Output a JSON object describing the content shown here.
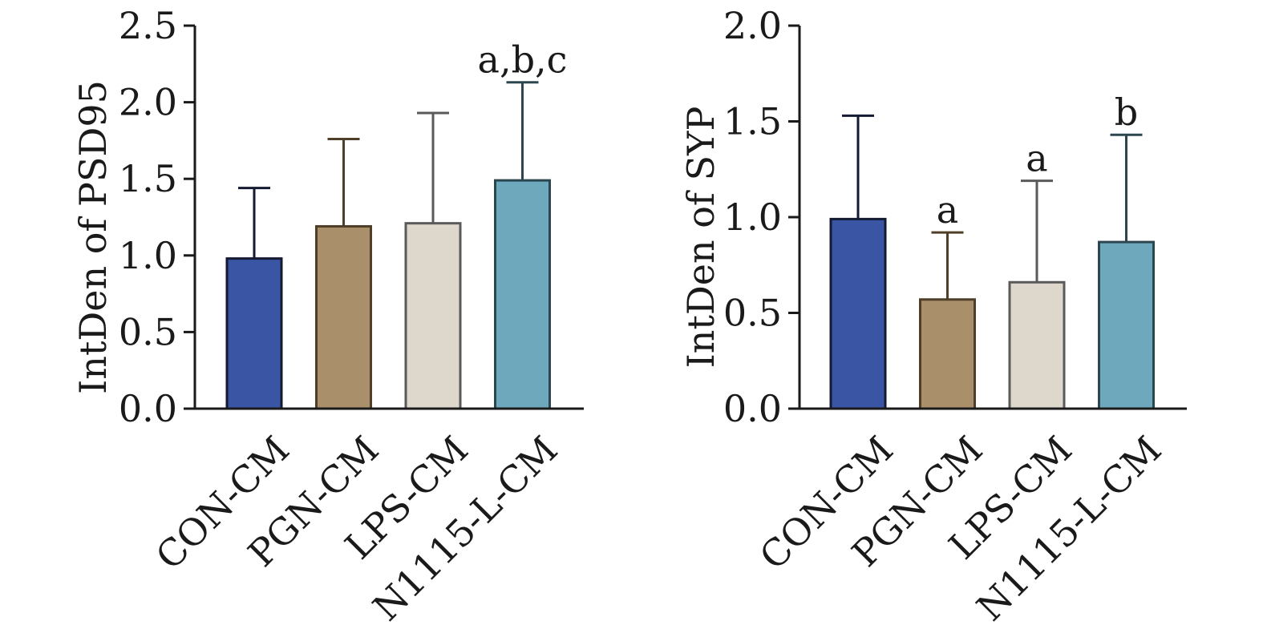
{
  "chart_data": [
    {
      "type": "bar",
      "ylabel": "IntDen of  PSD95",
      "ylim": [
        0,
        2.5
      ],
      "yticks": [
        "0.0",
        "0.5",
        "1.0",
        "1.5",
        "2.0",
        "2.5"
      ],
      "categories": [
        "CON-CM",
        "PGN-CM",
        "LPS-CM",
        "N1115-L-CM"
      ],
      "values": [
        0.98,
        1.19,
        1.21,
        1.49
      ],
      "error_upper": [
        1.44,
        1.76,
        1.93,
        2.13
      ],
      "annotations": [
        "",
        "",
        "",
        "a,b,c"
      ],
      "colors": [
        "#3a55a4",
        "#a98f6a",
        "#ddd7cc",
        "#6ea8bd"
      ],
      "edge_colors": [
        "#151a33",
        "#4f3f28",
        "#5a5a5a",
        "#2c4650"
      ],
      "grid": false,
      "legend": "none"
    },
    {
      "type": "bar",
      "ylabel": "IntDen of  SYP",
      "ylim": [
        0,
        2.0
      ],
      "yticks": [
        "0.0",
        "0.5",
        "1.0",
        "1.5",
        "2.0"
      ],
      "categories": [
        "CON-CM",
        "PGN-CM",
        "LPS-CM",
        "N1115-L-CM"
      ],
      "values": [
        0.99,
        0.57,
        0.66,
        0.87
      ],
      "error_upper": [
        1.53,
        0.92,
        1.19,
        1.43
      ],
      "annotations": [
        "",
        "a",
        "a",
        "b"
      ],
      "colors": [
        "#3a55a4",
        "#a98f6a",
        "#ddd7cc",
        "#6ea8bd"
      ],
      "edge_colors": [
        "#151a33",
        "#4f3f28",
        "#5a5a5a",
        "#2c4650"
      ],
      "grid": false,
      "legend": "none"
    }
  ]
}
